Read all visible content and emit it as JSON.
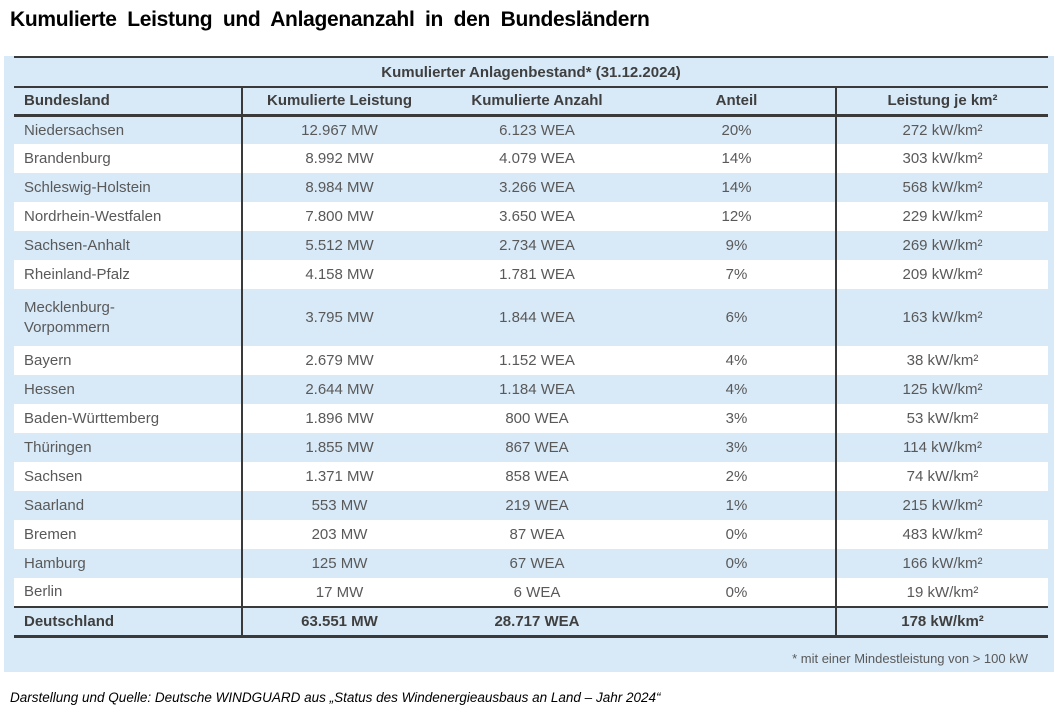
{
  "title": "Kumulierte Leistung und Anlagenanzahl in den Bundesländern",
  "chart_data": {
    "type": "table",
    "title": "Kumulierter Anlagenbestand* (31.12.2024)",
    "columns": [
      "Bundesland",
      "Kumulierte Leistung",
      "Kumulierte Anzahl",
      "Anteil",
      "Leistung je km²"
    ],
    "rows": [
      {
        "state": "Niedersachsen",
        "leistung": "12.967 MW",
        "anzahl": "6.123 WEA",
        "anteil": "20%",
        "leistung_km2": "272 kW/km²"
      },
      {
        "state": "Brandenburg",
        "leistung": "8.992 MW",
        "anzahl": "4.079 WEA",
        "anteil": "14%",
        "leistung_km2": "303 kW/km²"
      },
      {
        "state": "Schleswig-Holstein",
        "leistung": "8.984 MW",
        "anzahl": "3.266 WEA",
        "anteil": "14%",
        "leistung_km2": "568 kW/km²"
      },
      {
        "state": "Nordrhein-Westfalen",
        "leistung": "7.800 MW",
        "anzahl": "3.650 WEA",
        "anteil": "12%",
        "leistung_km2": "229 kW/km²"
      },
      {
        "state": "Sachsen-Anhalt",
        "leistung": "5.512 MW",
        "anzahl": "2.734 WEA",
        "anteil": "9%",
        "leistung_km2": "269 kW/km²"
      },
      {
        "state": "Rheinland-Pfalz",
        "leistung": "4.158 MW",
        "anzahl": "1.781 WEA",
        "anteil": "7%",
        "leistung_km2": "209 kW/km²"
      },
      {
        "state": "Mecklenburg-\nVorpommern",
        "leistung": "3.795 MW",
        "anzahl": "1.844 WEA",
        "anteil": "6%",
        "leistung_km2": "163 kW/km²"
      },
      {
        "state": "Bayern",
        "leistung": "2.679 MW",
        "anzahl": "1.152 WEA",
        "anteil": "4%",
        "leistung_km2": "38 kW/km²"
      },
      {
        "state": "Hessen",
        "leistung": "2.644 MW",
        "anzahl": "1.184 WEA",
        "anteil": "4%",
        "leistung_km2": "125 kW/km²"
      },
      {
        "state": "Baden-Württemberg",
        "leistung": "1.896 MW",
        "anzahl": "800 WEA",
        "anteil": "3%",
        "leistung_km2": "53 kW/km²"
      },
      {
        "state": "Thüringen",
        "leistung": "1.855 MW",
        "anzahl": "867 WEA",
        "anteil": "3%",
        "leistung_km2": "114 kW/km²"
      },
      {
        "state": "Sachsen",
        "leistung": "1.371 MW",
        "anzahl": "858 WEA",
        "anteil": "2%",
        "leistung_km2": "74 kW/km²"
      },
      {
        "state": "Saarland",
        "leistung": "553 MW",
        "anzahl": "219 WEA",
        "anteil": "1%",
        "leistung_km2": "215 kW/km²"
      },
      {
        "state": "Bremen",
        "leistung": "203 MW",
        "anzahl": "87 WEA",
        "anteil": "0%",
        "leistung_km2": "483 kW/km²"
      },
      {
        "state": "Hamburg",
        "leistung": "125 MW",
        "anzahl": "67 WEA",
        "anteil": "0%",
        "leistung_km2": "166 kW/km²"
      },
      {
        "state": "Berlin",
        "leistung": "17 MW",
        "anzahl": "6 WEA",
        "anteil": "0%",
        "leistung_km2": "19 kW/km²"
      }
    ],
    "total": {
      "state": "Deutschland",
      "leistung": "63.551 MW",
      "anzahl": "28.717 WEA",
      "anteil": "",
      "leistung_km2": "178 kW/km²"
    },
    "footnote": "* mit einer Mindestleistung von > 100 kW"
  },
  "source": "Darstellung und Quelle: Deutsche WINDGUARD aus „Status des Windenergieausbaus an Land – Jahr 2024“",
  "colors": {
    "panel_blue": "#d8e9f7",
    "stripe_white": "#ffffff",
    "border_dark": "#3a3a3a",
    "text_gray": "#595959",
    "header_text": "#3f3f3f"
  }
}
